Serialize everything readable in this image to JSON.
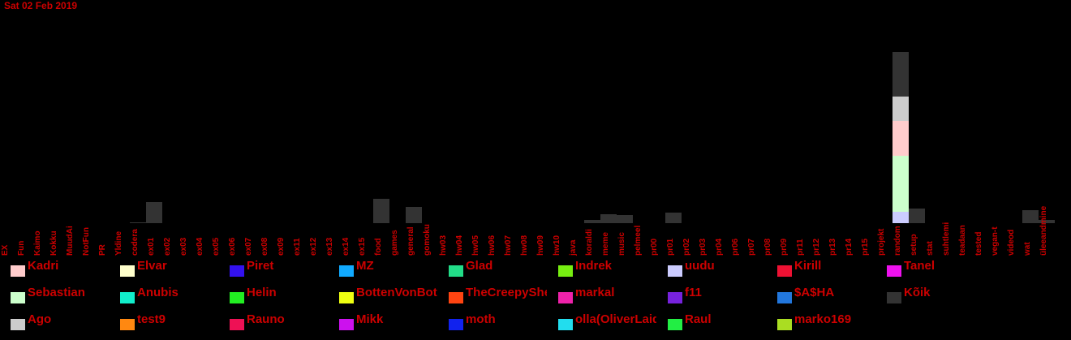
{
  "chart_data": {
    "type": "bar",
    "stacked": true,
    "title": "Sat 02 Feb 2019",
    "categories": [
      "EX",
      "Fun",
      "Kaimo",
      "Kokku",
      "MuudAi",
      "NotFun",
      "PR",
      "Yldine",
      "codera",
      "ex01",
      "ex02",
      "ex03",
      "ex04",
      "ex05",
      "ex06",
      "ex07",
      "ex08",
      "ex09",
      "ex11",
      "ex12",
      "ex13",
      "ex14",
      "ex15",
      "food",
      "games",
      "general",
      "gomoku",
      "hw03",
      "hw04",
      "hw05",
      "hw06",
      "hw07",
      "hw08",
      "hw09",
      "hw10",
      "java",
      "koraldi",
      "meme",
      "music",
      "pelmeel",
      "pr00",
      "pr01",
      "pr02",
      "pr03",
      "pr04",
      "pr06",
      "pr07",
      "pr08",
      "pr09",
      "pr11",
      "pr12",
      "pr13",
      "pr14",
      "pr15",
      "projekt",
      "random",
      "setup",
      "stat",
      "suhtlemi",
      "teadaan",
      "tested",
      "vegan-t",
      "videod",
      "wat",
      "üleeandmine"
    ],
    "series": [
      {
        "name": "Kadri",
        "color": "#ffcccc"
      },
      {
        "name": "Elvar",
        "color": "#ffffcc"
      },
      {
        "name": "Piret",
        "color": "#3311ee"
      },
      {
        "name": "MZ",
        "color": "#11aaff"
      },
      {
        "name": "Glad",
        "color": "#22dd88"
      },
      {
        "name": "Indrek",
        "color": "#77ee11"
      },
      {
        "name": "uudu",
        "color": "#ccccff"
      },
      {
        "name": "Kirill",
        "color": "#ee1133"
      },
      {
        "name": "Tanel",
        "color": "#ee11ee"
      },
      {
        "name": "Sebastian",
        "color": "#ccffcc"
      },
      {
        "name": "Anubis",
        "color": "#11eecc"
      },
      {
        "name": "Helin",
        "color": "#22ee22"
      },
      {
        "name": "BottenVonBot",
        "color": "#eeff11"
      },
      {
        "name": "TheCreepySheep",
        "color": "#ff4411"
      },
      {
        "name": "markal",
        "color": "#ee22aa"
      },
      {
        "name": "f11",
        "color": "#7722dd"
      },
      {
        "name": "$A$HA",
        "color": "#2277dd"
      },
      {
        "name": "Kõik",
        "color": "#333333"
      },
      {
        "name": "Ago",
        "color": "#cccccc"
      },
      {
        "name": "test9",
        "color": "#ff8811"
      },
      {
        "name": "Rauno",
        "color": "#ee1155"
      },
      {
        "name": "Mikk",
        "color": "#cc11ee"
      },
      {
        "name": "moth",
        "color": "#1122ee"
      },
      {
        "name": "olla(OliverLaidroo)",
        "color": "#22ddee"
      },
      {
        "name": "Raul",
        "color": "#22ee44"
      },
      {
        "name": "marko169",
        "color": "#aadd22"
      }
    ],
    "bars": [
      {
        "category": "codera",
        "segments": [
          {
            "series": "Kõik",
            "value": 1
          }
        ]
      },
      {
        "category": "ex01",
        "segments": [
          {
            "series": "Kõik",
            "value": 26
          }
        ]
      },
      {
        "category": "food",
        "segments": [
          {
            "series": "Kõik",
            "value": 30
          }
        ]
      },
      {
        "category": "general",
        "segments": [
          {
            "series": "Kõik",
            "value": 20
          }
        ]
      },
      {
        "category": "koraldi",
        "segments": [
          {
            "series": "Kõik",
            "value": 4
          }
        ]
      },
      {
        "category": "meme",
        "segments": [
          {
            "series": "Kõik",
            "value": 11
          }
        ]
      },
      {
        "category": "music",
        "segments": [
          {
            "series": "Kõik",
            "value": 10
          }
        ]
      },
      {
        "category": "pr01",
        "segments": [
          {
            "series": "Kõik",
            "value": 13
          }
        ]
      },
      {
        "category": "random",
        "segments": [
          {
            "series": "uudu",
            "value": 14
          },
          {
            "series": "Sebastian",
            "value": 69
          },
          {
            "series": "Kadri",
            "value": 43
          },
          {
            "series": "Ago",
            "value": 30
          },
          {
            "series": "Kõik",
            "value": 55
          }
        ]
      },
      {
        "category": "setup",
        "segments": [
          {
            "series": "Kõik",
            "value": 18
          }
        ]
      },
      {
        "category": "wat",
        "segments": [
          {
            "series": "Kõik",
            "value": 16
          }
        ]
      },
      {
        "category": "üleeandmine",
        "segments": [
          {
            "series": "Kõik",
            "value": 4
          }
        ]
      }
    ],
    "ylim": [
      0,
      211
    ],
    "grid": false,
    "legend_position": "bottom"
  }
}
